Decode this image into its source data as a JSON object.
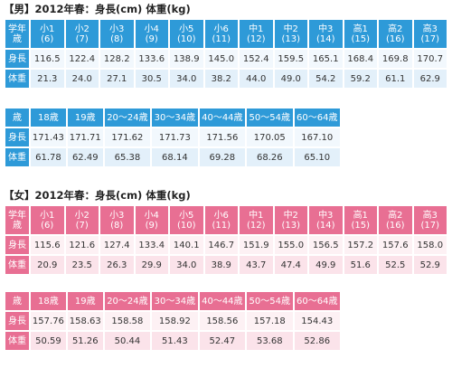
{
  "male": {
    "title": "【男】2012年春：身長(cm) 体重(kg)",
    "kids": {
      "corner": "学年\n歳",
      "columns": [
        {
          "grade": "小1",
          "age": "(6)"
        },
        {
          "grade": "小2",
          "age": "(7)"
        },
        {
          "grade": "小3",
          "age": "(8)"
        },
        {
          "grade": "小4",
          "age": "(9)"
        },
        {
          "grade": "小5",
          "age": "(10)"
        },
        {
          "grade": "小6",
          "age": "(11)"
        },
        {
          "grade": "中1",
          "age": "(12)"
        },
        {
          "grade": "中2",
          "age": "(13)"
        },
        {
          "grade": "中3",
          "age": "(14)"
        },
        {
          "grade": "高1",
          "age": "(15)"
        },
        {
          "grade": "高2",
          "age": "(16)"
        },
        {
          "grade": "高3",
          "age": "(17)"
        }
      ],
      "height_label": "身長",
      "weight_label": "体重",
      "height": [
        "116.5",
        "122.4",
        "128.2",
        "133.6",
        "138.9",
        "145.0",
        "152.4",
        "159.5",
        "165.1",
        "168.4",
        "169.8",
        "170.7"
      ],
      "weight": [
        "21.3",
        "24.0",
        "27.1",
        "30.5",
        "34.0",
        "38.2",
        "44.0",
        "49.0",
        "54.2",
        "59.2",
        "61.1",
        "62.9"
      ]
    },
    "adult": {
      "corner": "歳",
      "columns": [
        "18歳",
        "19歳",
        "20～24歳",
        "30～34歳",
        "40～44歳",
        "50～54歳",
        "60～64歳"
      ],
      "height_label": "身長",
      "weight_label": "体重",
      "height": [
        "171.43",
        "171.71",
        "171.62",
        "171.73",
        "171.56",
        "170.05",
        "167.10"
      ],
      "weight": [
        "61.78",
        "62.49",
        "65.38",
        "68.14",
        "69.28",
        "68.26",
        "65.10"
      ]
    }
  },
  "female": {
    "title": "【女】2012年春：身長(cm) 体重(kg)",
    "kids": {
      "corner": "学年\n歳",
      "columns": [
        {
          "grade": "小1",
          "age": "(6)"
        },
        {
          "grade": "小2",
          "age": "(7)"
        },
        {
          "grade": "小3",
          "age": "(8)"
        },
        {
          "grade": "小4",
          "age": "(9)"
        },
        {
          "grade": "小5",
          "age": "(10)"
        },
        {
          "grade": "小6",
          "age": "(11)"
        },
        {
          "grade": "中1",
          "age": "(12)"
        },
        {
          "grade": "中2",
          "age": "(13)"
        },
        {
          "grade": "中3",
          "age": "(14)"
        },
        {
          "grade": "高1",
          "age": "(15)"
        },
        {
          "grade": "高2",
          "age": "(16)"
        },
        {
          "grade": "高3",
          "age": "(17)"
        }
      ],
      "height_label": "身長",
      "weight_label": "体重",
      "height": [
        "115.6",
        "121.6",
        "127.4",
        "133.4",
        "140.1",
        "146.7",
        "151.9",
        "155.0",
        "156.5",
        "157.2",
        "157.6",
        "158.0"
      ],
      "weight": [
        "20.9",
        "23.5",
        "26.3",
        "29.9",
        "34.0",
        "38.9",
        "43.7",
        "47.4",
        "49.9",
        "51.6",
        "52.5",
        "52.9"
      ]
    },
    "adult": {
      "corner": "歳",
      "columns": [
        "18歳",
        "19歳",
        "20～24歳",
        "30～34歳",
        "40～44歳",
        "50～54歳",
        "60～64歳"
      ],
      "height_label": "身長",
      "weight_label": "体重",
      "height": [
        "157.76",
        "158.63",
        "158.58",
        "158.92",
        "158.56",
        "157.18",
        "154.43"
      ],
      "weight": [
        "50.59",
        "51.26",
        "50.44",
        "51.43",
        "52.47",
        "53.68",
        "52.86"
      ]
    }
  },
  "colors": {
    "male_header": "#2e9ad8",
    "female_header": "#e86f93",
    "male_cell": "#f2f8fd",
    "female_cell": "#fdf1f4"
  }
}
